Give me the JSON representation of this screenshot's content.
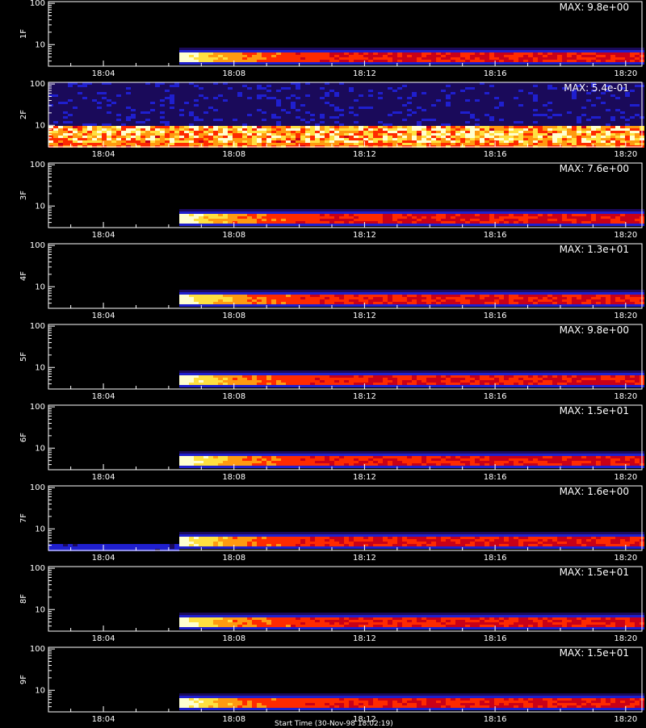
{
  "chart_data": [
    {
      "type": "heatmap",
      "ylabel": "1F",
      "max_label": "MAX: 9.8e+00",
      "yticks": [
        "100",
        "10"
      ],
      "xticks": [
        "18:04",
        "18:08",
        "18:12",
        "18:16",
        "18:20"
      ],
      "ylim": [
        3,
        110
      ],
      "yscale": "log",
      "onset_time": "18:06:15",
      "background": "low",
      "peak": 9.8
    },
    {
      "type": "heatmap",
      "ylabel": "2F",
      "max_label": "MAX: 5.4e-01",
      "yticks": [
        "100",
        "10"
      ],
      "xticks": [
        "18:04",
        "18:08",
        "18:12",
        "18:16",
        "18:20"
      ],
      "ylim": [
        3,
        110
      ],
      "yscale": "log",
      "onset_time": "18:02:00",
      "background": "noisy",
      "peak": 0.54
    },
    {
      "type": "heatmap",
      "ylabel": "3F",
      "max_label": "MAX: 7.6e+00",
      "yticks": [
        "100",
        "10"
      ],
      "xticks": [
        "18:04",
        "18:08",
        "18:12",
        "18:16",
        "18:20"
      ],
      "ylim": [
        3,
        110
      ],
      "yscale": "log",
      "onset_time": "18:06:15",
      "background": "low",
      "peak": 7.6
    },
    {
      "type": "heatmap",
      "ylabel": "4F",
      "max_label": "MAX: 1.3e+01",
      "yticks": [
        "100",
        "10"
      ],
      "xticks": [
        "18:04",
        "18:08",
        "18:12",
        "18:16",
        "18:20"
      ],
      "ylim": [
        3,
        110
      ],
      "yscale": "log",
      "onset_time": "18:06:15",
      "background": "low",
      "peak": 13
    },
    {
      "type": "heatmap",
      "ylabel": "5F",
      "max_label": "MAX: 9.8e+00",
      "yticks": [
        "100",
        "10"
      ],
      "xticks": [
        "18:04",
        "18:08",
        "18:12",
        "18:16",
        "18:20"
      ],
      "ylim": [
        3,
        110
      ],
      "yscale": "log",
      "onset_time": "18:06:15",
      "background": "low",
      "peak": 9.8
    },
    {
      "type": "heatmap",
      "ylabel": "6F",
      "max_label": "MAX: 1.5e+01",
      "yticks": [
        "100",
        "10"
      ],
      "xticks": [
        "18:04",
        "18:08",
        "18:12",
        "18:16",
        "18:20"
      ],
      "ylim": [
        3,
        110
      ],
      "yscale": "log",
      "onset_time": "18:06:15",
      "background": "low",
      "peak": 15
    },
    {
      "type": "heatmap",
      "ylabel": "7F",
      "max_label": "MAX: 1.6e+00",
      "yticks": [
        "100",
        "10"
      ],
      "xticks": [
        "18:04",
        "18:08",
        "18:12",
        "18:16",
        "18:20"
      ],
      "ylim": [
        3,
        110
      ],
      "yscale": "log",
      "onset_time": "18:06:15",
      "background": "blue-floor",
      "peak": 1.6
    },
    {
      "type": "heatmap",
      "ylabel": "8F",
      "max_label": "MAX: 1.5e+01",
      "yticks": [
        "100",
        "10"
      ],
      "xticks": [
        "18:04",
        "18:08",
        "18:12",
        "18:16",
        "18:20"
      ],
      "ylim": [
        3,
        110
      ],
      "yscale": "log",
      "onset_time": "18:06:15",
      "background": "low",
      "peak": 15
    },
    {
      "type": "heatmap",
      "ylabel": "9F",
      "max_label": "MAX: 1.5e+01",
      "yticks": [
        "100",
        "10"
      ],
      "xticks": [
        "18:04",
        "18:08",
        "18:12",
        "18:16",
        "18:20"
      ],
      "ylim": [
        3,
        110
      ],
      "yscale": "log",
      "onset_time": "18:06:15",
      "background": "low",
      "peak": 15
    }
  ],
  "colors": {
    "background": "#000000",
    "axis": "#ffffff",
    "text": "#ffffff",
    "colormap": [
      "#000000",
      "#1a0a5a",
      "#1f1fcf",
      "#6a0fa8",
      "#c80018",
      "#ff2a00",
      "#ff9a10",
      "#ffe040",
      "#ffffd0"
    ]
  },
  "footer": {
    "xlabel": "Start Time (30-Nov-98 18:02:19)"
  }
}
